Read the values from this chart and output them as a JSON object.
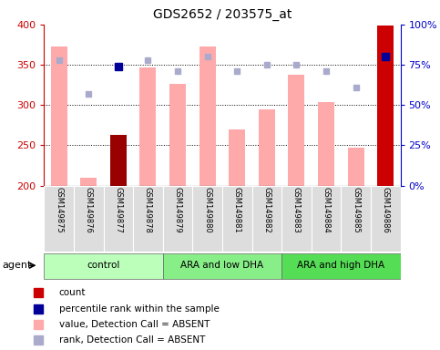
{
  "title": "GDS2652 / 203575_at",
  "samples": [
    "GSM149875",
    "GSM149876",
    "GSM149877",
    "GSM149878",
    "GSM149879",
    "GSM149880",
    "GSM149881",
    "GSM149882",
    "GSM149883",
    "GSM149884",
    "GSM149885",
    "GSM149886"
  ],
  "bar_values": [
    373,
    210,
    263,
    347,
    326,
    373,
    270,
    294,
    338,
    304,
    247,
    399
  ],
  "bar_colors": [
    "#ffaaaa",
    "#ffaaaa",
    "#990000",
    "#ffaaaa",
    "#ffaaaa",
    "#ffaaaa",
    "#ffaaaa",
    "#ffaaaa",
    "#ffaaaa",
    "#ffaaaa",
    "#ffaaaa",
    "#cc0000"
  ],
  "rank_dots": [
    356,
    314,
    348,
    356,
    342,
    360,
    342,
    350,
    350,
    342,
    322,
    360
  ],
  "percentile_dots": [
    null,
    null,
    348,
    null,
    null,
    null,
    null,
    null,
    null,
    null,
    null,
    360
  ],
  "ylim": [
    200,
    400
  ],
  "yticks": [
    200,
    250,
    300,
    350,
    400
  ],
  "y2lim": [
    0,
    100
  ],
  "y2ticks": [
    0,
    25,
    50,
    75,
    100
  ],
  "y2labels": [
    "0%",
    "25%",
    "50%",
    "75%",
    "100%"
  ],
  "grid_yticks": [
    250,
    300,
    350
  ],
  "groups": [
    {
      "label": "control",
      "start": 0,
      "end": 4,
      "color": "#bbffbb"
    },
    {
      "label": "ARA and low DHA",
      "start": 4,
      "end": 8,
      "color": "#88ee88"
    },
    {
      "label": "ARA and high DHA",
      "start": 8,
      "end": 12,
      "color": "#55dd55"
    }
  ],
  "legend_colors": [
    "#cc0000",
    "#000099",
    "#ffaaaa",
    "#aaaacc"
  ],
  "legend_labels": [
    "count",
    "percentile rank within the sample",
    "value, Detection Call = ABSENT",
    "rank, Detection Call = ABSENT"
  ],
  "agent_label": "agent",
  "bg_color": "#ffffff",
  "left_axis_color": "#cc0000",
  "right_axis_color": "#0000cc",
  "bar_width": 0.55
}
